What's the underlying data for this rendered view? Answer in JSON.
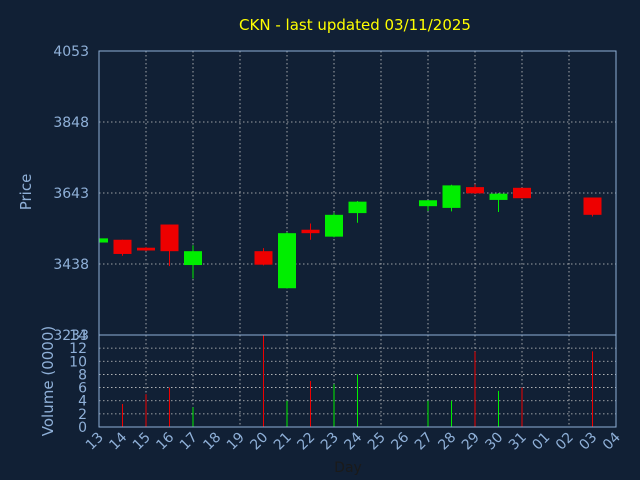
{
  "chart_data": {
    "type": "candlestick",
    "title": "CKN - last updated 03/11/2025",
    "ylabel_price": "Price",
    "ylabel_volume": "Volume (0000)",
    "xlabel": "Day",
    "price_ylim": [
      3233,
      4053
    ],
    "price_ticks": [
      "4053",
      "3848",
      "3643",
      "3438",
      "3233"
    ],
    "volume_ylim": [
      0,
      14
    ],
    "volume_ticks": [
      "0",
      "2",
      "4",
      "6",
      "8",
      "10",
      "12",
      "14"
    ],
    "x_ticks": [
      "13",
      "14",
      "15",
      "16",
      "17",
      "18",
      "19",
      "20",
      "21",
      "22",
      "23",
      "24",
      "25",
      "26",
      "27",
      "28",
      "29",
      "30",
      "31",
      "01",
      "02",
      "03",
      "04"
    ],
    "grid": true,
    "colors": {
      "up": "#00ee00",
      "down": "#ee0000",
      "title": "#ffff00",
      "axis_text": "#8fb0d8",
      "grid": "#c8c8c8",
      "frame": "#8fb0d8"
    },
    "candles": [
      {
        "day": "13",
        "open": 3500,
        "close": 3512,
        "high": 3514,
        "low": 3498,
        "volume": 0
      },
      {
        "day": "14",
        "open": 3508,
        "close": 3467,
        "high": 3508,
        "low": 3462,
        "volume": 3.5
      },
      {
        "day": "15",
        "open": 3485,
        "close": 3477,
        "high": 3487,
        "low": 3475,
        "volume": 5
      },
      {
        "day": "16",
        "open": 3552,
        "close": 3475,
        "high": 3552,
        "low": 3432,
        "volume": 6
      },
      {
        "day": "17",
        "open": 3435,
        "close": 3475,
        "high": 3492,
        "low": 3396,
        "volume": 3
      },
      {
        "day": "20",
        "open": 3475,
        "close": 3436,
        "high": 3484,
        "low": 3434,
        "volume": 14
      },
      {
        "day": "21",
        "open": 3368,
        "close": 3527,
        "high": 3530,
        "low": 3368,
        "volume": 4
      },
      {
        "day": "22",
        "open": 3537,
        "close": 3527,
        "high": 3555,
        "low": 3508,
        "volume": 7
      },
      {
        "day": "23",
        "open": 3517,
        "close": 3580,
        "high": 3586,
        "low": 3515,
        "volume": 6.5
      },
      {
        "day": "24",
        "open": 3585,
        "close": 3618,
        "high": 3620,
        "low": 3557,
        "volume": 8
      },
      {
        "day": "27",
        "open": 3605,
        "close": 3622,
        "high": 3622,
        "low": 3591,
        "volume": 4
      },
      {
        "day": "28",
        "open": 3600,
        "close": 3665,
        "high": 3667,
        "low": 3590,
        "volume": 4
      },
      {
        "day": "29",
        "open": 3660,
        "close": 3642,
        "high": 3668,
        "low": 3640,
        "volume": 11.5
      },
      {
        "day": "30",
        "open": 3623,
        "close": 3641,
        "high": 3643,
        "low": 3588,
        "volume": 5.5
      },
      {
        "day": "31",
        "open": 3658,
        "close": 3628,
        "high": 3658,
        "low": 3627,
        "volume": 6
      },
      {
        "day": "03",
        "open": 3630,
        "close": 3580,
        "high": 3630,
        "low": 3575,
        "volume": 11.5
      }
    ]
  }
}
